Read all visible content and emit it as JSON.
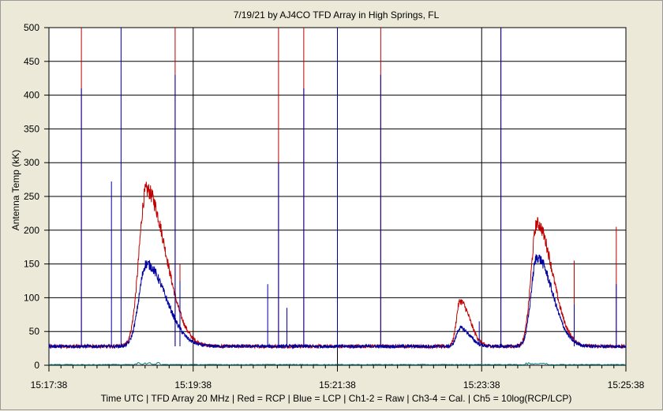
{
  "chart_data": {
    "type": "line",
    "title": "7/19/21  by  AJ4CO TFD Array  in  High Springs, FL",
    "ylabel": "Antenna Temp (kK)",
    "footer": "Time UTC | TFD Array 20 MHz | Red = RCP | Blue = LCP | Ch1-2 = Raw | Ch3-4 = Cal. | Ch5 = 10log(RCP/LCP)",
    "ylim": [
      0,
      500
    ],
    "y_ticks": [
      "0",
      "50",
      "100",
      "150",
      "200",
      "250",
      "300",
      "350",
      "400",
      "450",
      "500"
    ],
    "x_ticks": [
      "15:17:38",
      "15:19:38",
      "15:21:38",
      "15:23:38",
      "15:25:38"
    ],
    "x_range_seconds": [
      0,
      480
    ],
    "grid": true,
    "colors": {
      "rcp": "#c00000",
      "lcp": "#0000a0",
      "ratio": "#008080",
      "grid": "#000000"
    },
    "baseline": {
      "rcp": 28,
      "lcp": 28
    },
    "bursts": [
      {
        "center": 81,
        "width": 10,
        "rcp": 260,
        "lcp": 150
      },
      {
        "center": 342,
        "width": 5,
        "rcp": 95,
        "lcp": 55
      },
      {
        "center": 406,
        "width": 8,
        "rcp": 210,
        "lcp": 160
      }
    ],
    "spikes": [
      {
        "t": 27,
        "rcp": 500,
        "lcp": 410
      },
      {
        "t": 52,
        "rcp": 0,
        "lcp": 272
      },
      {
        "t": 60,
        "rcp": 0,
        "lcp": 500
      },
      {
        "t": 105,
        "rcp": 500,
        "lcp": 430
      },
      {
        "t": 109,
        "rcp": 150,
        "lcp": 125
      },
      {
        "t": 182,
        "rcp": 0,
        "lcp": 120
      },
      {
        "t": 191,
        "rcp": 500,
        "lcp": 300
      },
      {
        "t": 198,
        "rcp": 0,
        "lcp": 85
      },
      {
        "t": 212,
        "rcp": 500,
        "lcp": 410
      },
      {
        "t": 240,
        "rcp": 500,
        "lcp": 500
      },
      {
        "t": 276,
        "rcp": 500,
        "lcp": 430
      },
      {
        "t": 358,
        "rcp": 0,
        "lcp": 65
      },
      {
        "t": 376,
        "rcp": 500,
        "lcp": 500
      },
      {
        "t": 437,
        "rcp": 155,
        "lcp": 90
      },
      {
        "t": 472,
        "rcp": 205,
        "lcp": 120
      }
    ]
  }
}
